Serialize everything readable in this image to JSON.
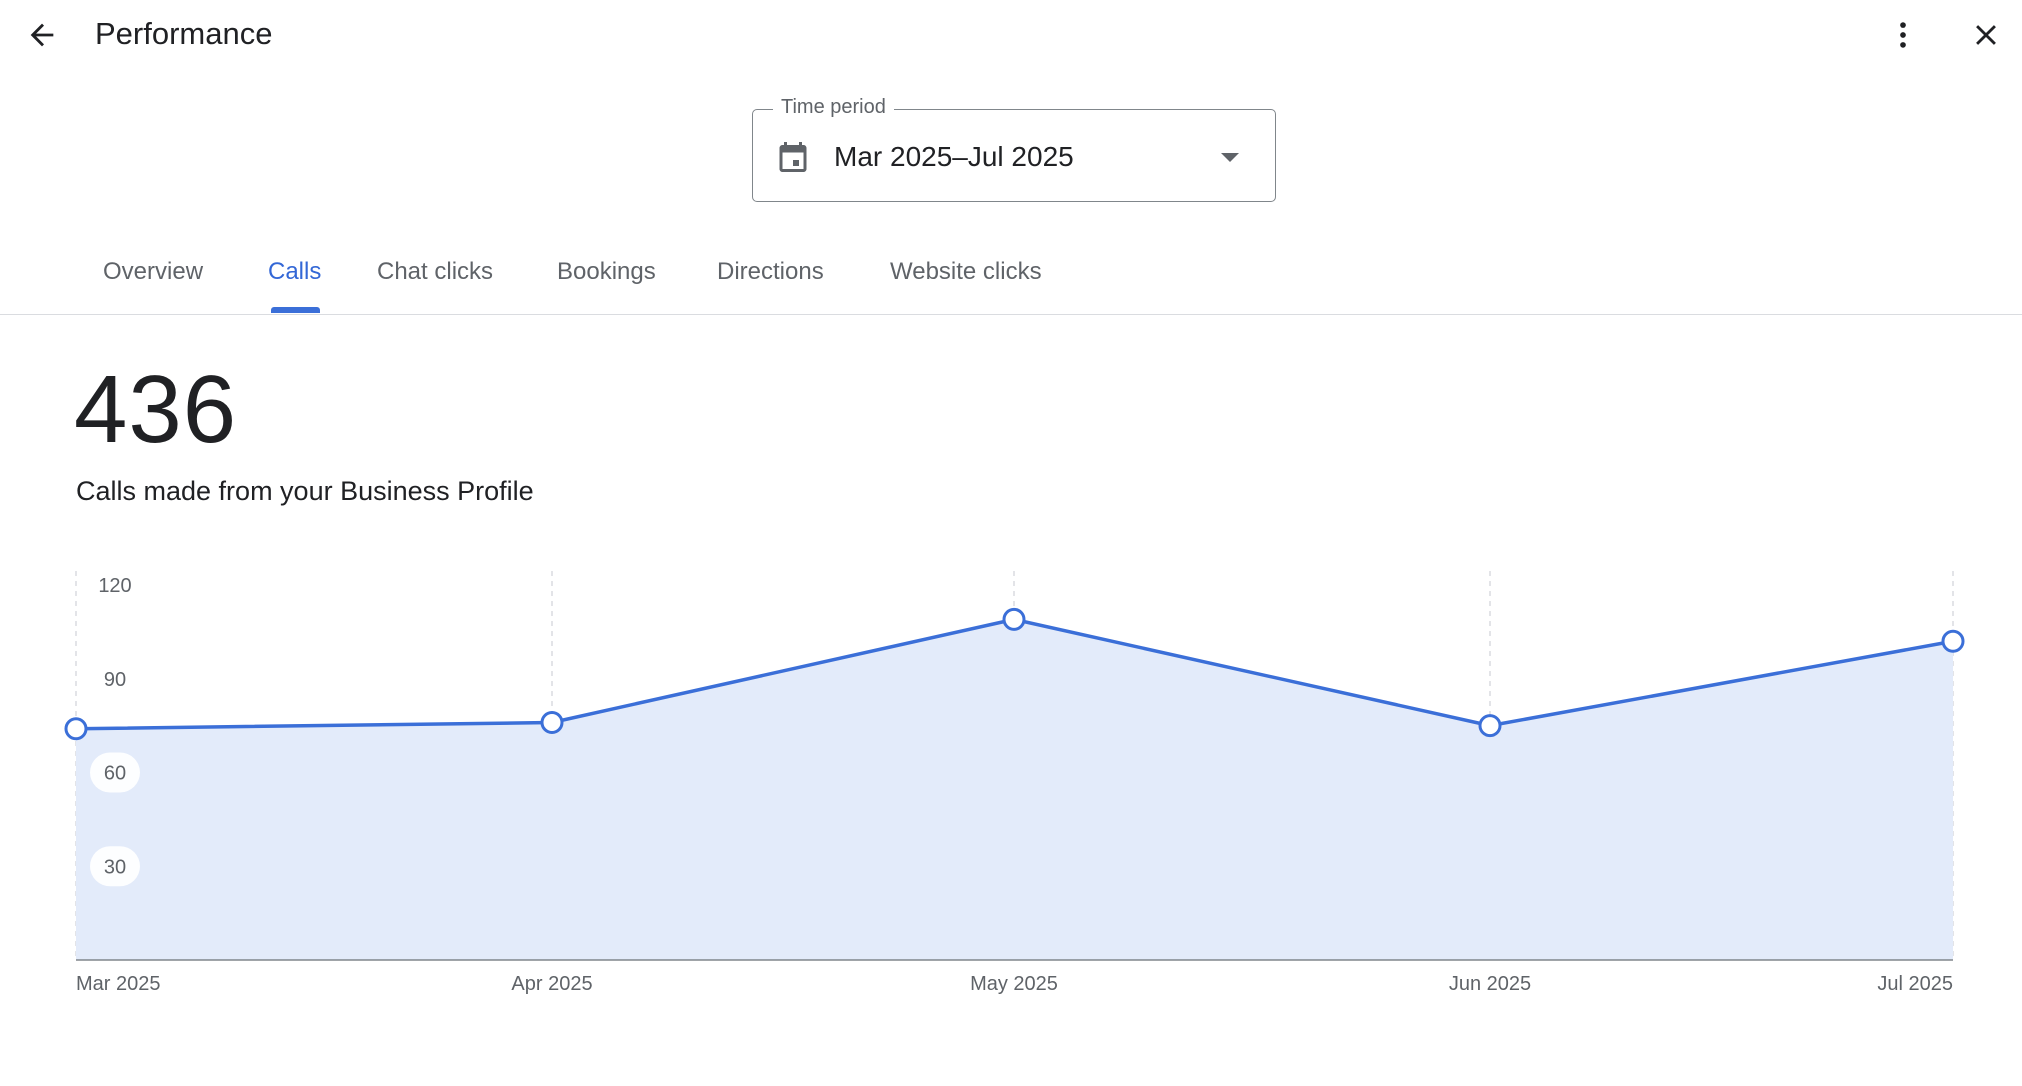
{
  "header": {
    "title": "Performance",
    "back_icon": "arrow-back-icon",
    "more_icon": "more-vert-icon",
    "close_icon": "close-icon"
  },
  "time_period": {
    "label": "Time period",
    "value": "Mar 2025–Jul 2025",
    "icon": "calendar-icon"
  },
  "tabs": [
    {
      "label": "Overview",
      "active": false
    },
    {
      "label": "Calls",
      "active": true
    },
    {
      "label": "Chat clicks",
      "active": false
    },
    {
      "label": "Bookings",
      "active": false
    },
    {
      "label": "Directions",
      "active": false
    },
    {
      "label": "Website clicks",
      "active": false
    }
  ],
  "metric": {
    "value": "436",
    "caption": "Calls made from your Business Profile"
  },
  "colors": {
    "accent": "#3b6fd8",
    "area_fill": "#e3ebfa",
    "grid": "#dadce0",
    "axis": "#80868b"
  },
  "chart_data": {
    "type": "area",
    "categories": [
      "Mar 2025",
      "Apr 2025",
      "May 2025",
      "Jun 2025",
      "Jul 2025"
    ],
    "series": [
      {
        "values": [
          74,
          76,
          109,
          75,
          102
        ]
      }
    ],
    "yticks": [
      "120",
      "90",
      "60",
      "30"
    ],
    "ylim": [
      0,
      120
    ],
    "grid": "vertical dashed"
  }
}
